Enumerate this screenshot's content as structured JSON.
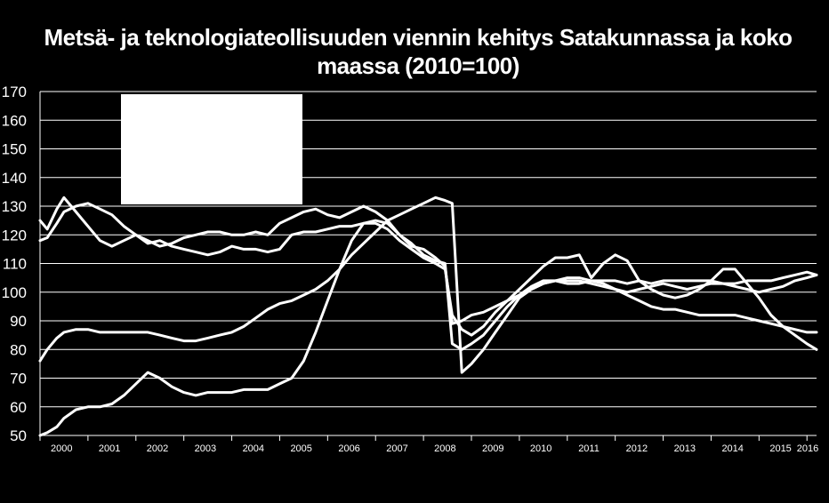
{
  "chart_data": {
    "type": "line",
    "title": "Metsä- ja teknologiateollisuuden viennin kehitys Satakunnassa ja koko maassa (2010=100)",
    "xlabel": "",
    "ylabel": "",
    "ylim": [
      50,
      170
    ],
    "yticks": [
      "50",
      "60",
      "70",
      "80",
      "90",
      "100",
      "110",
      "120",
      "130",
      "140",
      "150",
      "160",
      "170"
    ],
    "xlim": [
      2000,
      2016.2
    ],
    "x_categories": [
      "2000",
      "2001",
      "2002",
      "2003",
      "2004",
      "2005",
      "2006",
      "2007",
      "2008",
      "2009",
      "2010",
      "2011",
      "2012",
      "2013",
      "2014",
      "2015",
      "2016"
    ],
    "grid": true,
    "legend": "obscured",
    "colors": {
      "background": "#000000",
      "line": "#ffffff",
      "grid": "#ffffff",
      "legend_box": "#ffffff"
    },
    "series": [
      {
        "x": [
          2000,
          2000.15,
          2000.35,
          2000.5,
          2000.75,
          2001,
          2001.25,
          2001.5,
          2001.75,
          2002,
          2002.25,
          2002.5,
          2002.75,
          2003,
          2003.25,
          2003.5,
          2003.75,
          2004,
          2004.25,
          2004.5,
          2004.75,
          2005,
          2005.25,
          2005.5,
          2005.75,
          2006,
          2006.25,
          2006.5,
          2006.75,
          2007,
          2007.25,
          2007.5,
          2007.75,
          2008,
          2008.25,
          2008.45,
          2008.6,
          2008.8,
          2009,
          2009.25,
          2009.5,
          2009.75,
          2010,
          2010.25,
          2010.5,
          2010.75,
          2011,
          2011.25,
          2011.5,
          2011.75,
          2012,
          2012.25,
          2012.5,
          2012.75,
          2013,
          2013.25,
          2013.5,
          2013.75,
          2014,
          2014.25,
          2014.5,
          2014.75,
          2015,
          2015.25,
          2015.5,
          2015.75,
          2016,
          2016.2
        ],
        "values": [
          125,
          122,
          129,
          133,
          128,
          123,
          118,
          116,
          118,
          120,
          117,
          118,
          116,
          115,
          114,
          113,
          114,
          116,
          115,
          115,
          114,
          115,
          120,
          121,
          121,
          122,
          123,
          123,
          124,
          124,
          122,
          118,
          115,
          112,
          110,
          108,
          92,
          87,
          85,
          88,
          93,
          97,
          101,
          105,
          109,
          112,
          112,
          113,
          105,
          110,
          113,
          111,
          104,
          101,
          99,
          98,
          99,
          101,
          104,
          108,
          108,
          103,
          98,
          92,
          88,
          85,
          82,
          80
        ]
      },
      {
        "x": [
          2000,
          2000.15,
          2000.35,
          2000.5,
          2000.75,
          2001,
          2001.25,
          2001.5,
          2001.75,
          2002,
          2002.25,
          2002.5,
          2002.75,
          2003,
          2003.25,
          2003.5,
          2003.75,
          2004,
          2004.25,
          2004.5,
          2004.75,
          2005,
          2005.25,
          2005.5,
          2005.75,
          2006,
          2006.25,
          2006.5,
          2006.75,
          2007,
          2007.25,
          2007.5,
          2007.75,
          2008,
          2008.25,
          2008.45,
          2008.6,
          2008.8,
          2009,
          2009.25,
          2009.5,
          2009.75,
          2010,
          2010.25,
          2010.5,
          2010.75,
          2011,
          2011.25,
          2011.5,
          2011.75,
          2012,
          2012.25,
          2012.5,
          2012.75,
          2013,
          2013.25,
          2013.5,
          2013.75,
          2014,
          2014.25,
          2014.5,
          2014.75,
          2015,
          2015.25,
          2015.5,
          2015.75,
          2016,
          2016.2
        ],
        "values": [
          118,
          119,
          124,
          128,
          130,
          131,
          129,
          127,
          123,
          120,
          118,
          116,
          117,
          119,
          120,
          121,
          121,
          120,
          120,
          121,
          120,
          124,
          126,
          128,
          129,
          127,
          126,
          128,
          130,
          128,
          125,
          120,
          117,
          113,
          111,
          110,
          82,
          80,
          82,
          85,
          90,
          95,
          99,
          102,
          104,
          104,
          103,
          103,
          104,
          103,
          101,
          100,
          101,
          102,
          103,
          102,
          101,
          102,
          103,
          103,
          102,
          101,
          100,
          101,
          102,
          104,
          105,
          106
        ]
      },
      {
        "x": [
          2000,
          2000.15,
          2000.35,
          2000.5,
          2000.75,
          2001,
          2001.25,
          2001.5,
          2001.75,
          2002,
          2002.25,
          2002.5,
          2002.75,
          2003,
          2003.25,
          2003.5,
          2003.75,
          2004,
          2004.25,
          2004.5,
          2004.75,
          2005,
          2005.25,
          2005.5,
          2005.75,
          2006,
          2006.25,
          2006.5,
          2006.75,
          2007,
          2007.25,
          2007.5,
          2007.75,
          2008,
          2008.25,
          2008.45,
          2008.6,
          2008.8,
          2009,
          2009.25,
          2009.5,
          2009.75,
          2010,
          2010.25,
          2010.5,
          2010.75,
          2011,
          2011.25,
          2011.5,
          2011.75,
          2012,
          2012.25,
          2012.5,
          2012.75,
          2013,
          2013.25,
          2013.5,
          2013.75,
          2014,
          2014.25,
          2014.5,
          2014.75,
          2015,
          2015.25,
          2015.5,
          2015.75,
          2016,
          2016.2
        ],
        "values": [
          76,
          80,
          84,
          86,
          87,
          87,
          86,
          86,
          86,
          86,
          86,
          85,
          84,
          83,
          83,
          84,
          85,
          86,
          88,
          91,
          94,
          96,
          97,
          99,
          101,
          104,
          108,
          113,
          117,
          121,
          125,
          127,
          129,
          131,
          133,
          132,
          131,
          72,
          75,
          80,
          86,
          92,
          98,
          101,
          103,
          104,
          104,
          104,
          103,
          102,
          101,
          99,
          97,
          95,
          94,
          94,
          93,
          92,
          92,
          92,
          92,
          91,
          90,
          89,
          88,
          87,
          86,
          86
        ]
      },
      {
        "x": [
          2000,
          2000.15,
          2000.35,
          2000.5,
          2000.75,
          2001,
          2001.25,
          2001.5,
          2001.75,
          2002,
          2002.25,
          2002.5,
          2002.75,
          2003,
          2003.25,
          2003.5,
          2003.75,
          2004,
          2004.25,
          2004.5,
          2004.75,
          2005,
          2005.25,
          2005.5,
          2005.75,
          2006,
          2006.25,
          2006.5,
          2006.75,
          2007,
          2007.25,
          2007.5,
          2007.75,
          2008,
          2008.25,
          2008.45,
          2008.6,
          2008.8,
          2009,
          2009.25,
          2009.5,
          2009.75,
          2010,
          2010.25,
          2010.5,
          2010.75,
          2011,
          2011.25,
          2011.5,
          2011.75,
          2012,
          2012.25,
          2012.5,
          2012.75,
          2013,
          2013.25,
          2013.5,
          2013.75,
          2014,
          2014.25,
          2014.5,
          2014.75,
          2015,
          2015.25,
          2015.5,
          2015.75,
          2016,
          2016.2
        ],
        "values": [
          50,
          51,
          53,
          56,
          59,
          60,
          60,
          61,
          64,
          68,
          72,
          70,
          67,
          65,
          64,
          65,
          65,
          65,
          66,
          66,
          66,
          68,
          70,
          76,
          86,
          97,
          108,
          118,
          124,
          125,
          124,
          120,
          116,
          115,
          112,
          109,
          89,
          90,
          92,
          93,
          95,
          97,
          99,
          101,
          103,
          104,
          105,
          105,
          104,
          104,
          104,
          103,
          104,
          103,
          104,
          104,
          104,
          104,
          104,
          103,
          103,
          104,
          104,
          104,
          105,
          106,
          107,
          106
        ]
      }
    ]
  }
}
